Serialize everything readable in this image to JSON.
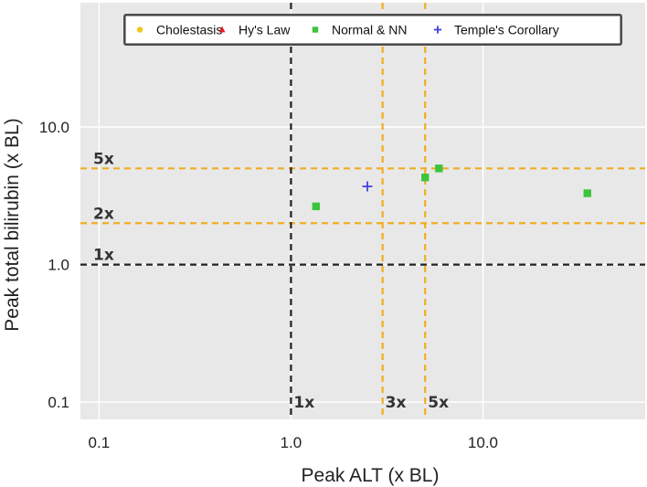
{
  "chart_data": {
    "type": "scatter",
    "title": "",
    "xlabel": "Peak ALT (x BL)",
    "ylabel": "Peak total bilirubin (x BL)",
    "x_scale": "log",
    "y_scale": "log",
    "xlim": [
      0.08,
      70
    ],
    "ylim": [
      0.075,
      80
    ],
    "x_ticks": [
      {
        "value": 0.1,
        "label": "0.1"
      },
      {
        "value": 1,
        "label": "1.0"
      },
      {
        "value": 10,
        "label": "10.0"
      }
    ],
    "y_ticks": [
      {
        "value": 0.1,
        "label": "0.1"
      },
      {
        "value": 1,
        "label": "1.0"
      },
      {
        "value": 10,
        "label": "10.0"
      }
    ],
    "grid": true,
    "legend_position": "top",
    "legend": [
      {
        "name": "Cholestasis",
        "marker": "circle",
        "color": "#f5c518"
      },
      {
        "name": "Hy's Law",
        "marker": "triangle",
        "color": "#e02020"
      },
      {
        "name": "Normal & NN",
        "marker": "square",
        "color": "#3cc43c"
      },
      {
        "name": "Temple's Corollary",
        "marker": "plus",
        "color": "#4040e0"
      }
    ],
    "series": [
      {
        "name": "Cholestasis",
        "marker": "circle",
        "color": "#f5c518",
        "points": []
      },
      {
        "name": "Hy's Law",
        "marker": "triangle",
        "color": "#e02020",
        "points": []
      },
      {
        "name": "Normal & NN",
        "marker": "square",
        "color": "#3cc43c",
        "points": [
          [
            1.35,
            2.65
          ],
          [
            5.0,
            4.3
          ],
          [
            5.9,
            5.0
          ],
          [
            35.0,
            3.3
          ]
        ]
      },
      {
        "name": "Temple's Corollary",
        "marker": "plus",
        "color": "#4040e0",
        "points": [
          [
            2.5,
            3.7
          ]
        ]
      }
    ],
    "reference_lines": {
      "horizontal": [
        {
          "value": 5,
          "label": "5x",
          "color": "#f0ad20"
        },
        {
          "value": 2,
          "label": "2x",
          "color": "#f0ad20"
        },
        {
          "value": 1,
          "label": "1x",
          "color": "#222222"
        }
      ],
      "vertical": [
        {
          "value": 1,
          "label": "1x",
          "color": "#222222"
        },
        {
          "value": 3,
          "label": "3x",
          "color": "#f0ad20"
        },
        {
          "value": 5,
          "label": "5x",
          "color": "#f0ad20"
        }
      ]
    },
    "colors": {
      "plot_background": "#e8e8e8",
      "grid": "#ffffff"
    }
  }
}
